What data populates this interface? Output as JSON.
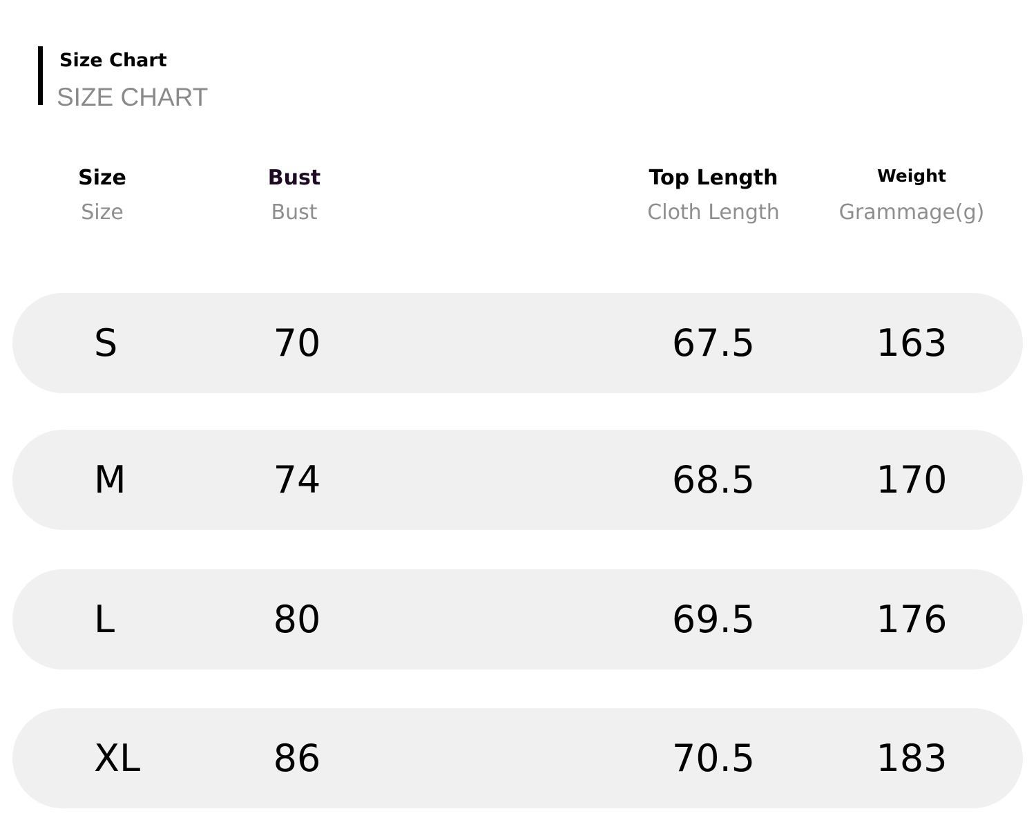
{
  "title": {
    "primary": "Size Chart",
    "secondary": "SIZE CHART"
  },
  "columns": [
    {
      "label": "Size",
      "sublabel": "Size"
    },
    {
      "label": "Bust",
      "sublabel": "Bust"
    },
    {
      "label": "Top Length",
      "sublabel": "Cloth Length"
    },
    {
      "label": "Weight",
      "sublabel": "Grammage(g)"
    }
  ],
  "rows": [
    [
      "S",
      "70",
      "67.5",
      "163"
    ],
    [
      "M",
      "74",
      "68.5",
      "170"
    ],
    [
      "L",
      "80",
      "69.5",
      "176"
    ],
    [
      "XL",
      "86",
      "70.5",
      "183"
    ]
  ],
  "colors": {
    "row_bg": "#f0f0f0",
    "sublabel": "#8e8e8e",
    "bust_header": "#1e0a24"
  }
}
